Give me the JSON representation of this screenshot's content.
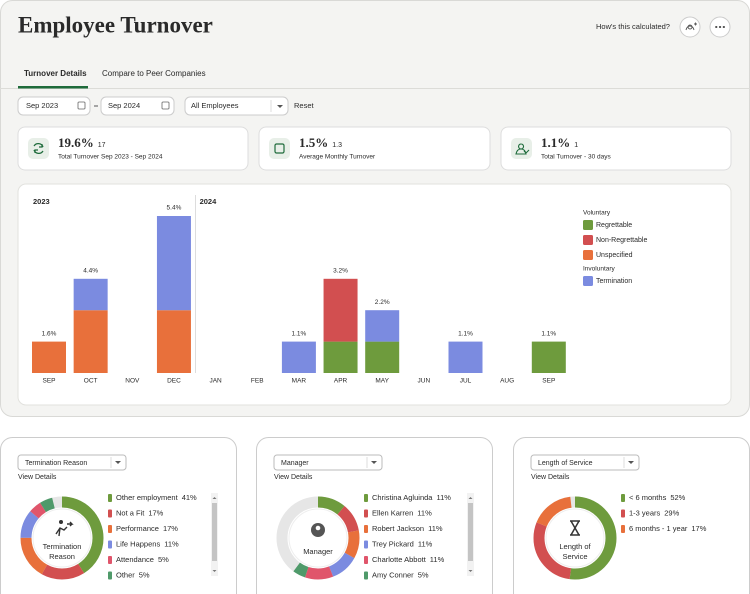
{
  "header": {
    "title": "Employee Turnover",
    "help_link": "How's this calculated?"
  },
  "tabs": [
    "Turnover Details",
    "Compare to Peer Companies"
  ],
  "filters": {
    "start": "Sep 2023",
    "end": "Sep 2024",
    "group": "All Employees",
    "reset": "Reset"
  },
  "kpis": [
    {
      "value": "19.6%",
      "count": "17",
      "label": "Total Turnover Sep 2023 - Sep 2024"
    },
    {
      "value": "1.5%",
      "count": "1.3",
      "label": "Average Monthly Turnover"
    },
    {
      "value": "1.1%",
      "count": "1",
      "label": "Total Turnover - 30 days"
    }
  ],
  "chart_data": {
    "type": "bar",
    "stacked": true,
    "year_labels": [
      {
        "label": "2023",
        "index": 0
      },
      {
        "label": "2024",
        "index": 4
      }
    ],
    "categories": [
      "SEP",
      "OCT",
      "NOV",
      "DEC",
      "JAN",
      "FEB",
      "MAR",
      "APR",
      "MAY",
      "JUN",
      "JUL",
      "AUG",
      "SEP"
    ],
    "total_labels": [
      "1.6%",
      "4.4%",
      null,
      "5.4%",
      null,
      null,
      "1.1%",
      "3.2%",
      "2.2%",
      null,
      "1.1%",
      null,
      "1.1%"
    ],
    "legend_groups": [
      "Voluntary",
      "Involuntary"
    ],
    "series": [
      {
        "name": "Regrettable",
        "group": "Voluntary",
        "color": "#6e9b3d",
        "values": [
          0,
          0,
          0,
          0,
          0,
          0,
          0,
          1,
          1,
          0,
          0,
          0,
          1
        ]
      },
      {
        "name": "Non-Regrettable",
        "group": "Voluntary",
        "color": "#d24f50",
        "values": [
          0,
          0,
          0,
          0,
          0,
          0,
          0,
          2,
          0,
          0,
          0,
          0,
          0
        ]
      },
      {
        "name": "Unspecified",
        "group": "Voluntary",
        "color": "#e8703b",
        "values": [
          1,
          2,
          0,
          2,
          0,
          0,
          0,
          0,
          0,
          0,
          0,
          0,
          0
        ]
      },
      {
        "name": "Termination",
        "group": "Involuntary",
        "color": "#7b8be0",
        "values": [
          0,
          1,
          0,
          3,
          0,
          0,
          1,
          0,
          1,
          0,
          1,
          0,
          0
        ]
      }
    ]
  },
  "breakdowns": [
    {
      "selector": "Termination Reason",
      "link": "View Details",
      "center_label": [
        "Termination",
        "Reason"
      ],
      "scroll": true,
      "items": [
        {
          "name": "Other employment",
          "value": 41,
          "label": "41%",
          "color": "#6e9b3d"
        },
        {
          "name": "Not a Fit",
          "value": 17,
          "label": "17%",
          "color": "#d24f50"
        },
        {
          "name": "Performance",
          "value": 17,
          "label": "17%",
          "color": "#e8703b"
        },
        {
          "name": "Life Happens",
          "value": 11,
          "label": "11%",
          "color": "#7b8be0"
        },
        {
          "name": "Attendance",
          "value": 5,
          "label": "5%",
          "color": "#e0556b"
        },
        {
          "name": "Other",
          "value": 5,
          "label": "5%",
          "color": "#4f9a6a"
        }
      ]
    },
    {
      "selector": "Manager",
      "link": "View Details",
      "center_label": [
        "Manager"
      ],
      "scroll": true,
      "items": [
        {
          "name": "Christina Agluinda",
          "value": 11,
          "label": "11%",
          "color": "#6e9b3d"
        },
        {
          "name": "Ellen Karren",
          "value": 11,
          "label": "11%",
          "color": "#d24f50"
        },
        {
          "name": "Robert Jackson",
          "value": 11,
          "label": "11%",
          "color": "#e8703b"
        },
        {
          "name": "Trey Pickard",
          "value": 11,
          "label": "11%",
          "color": "#7b8be0"
        },
        {
          "name": "Charlotte Abbott",
          "value": 11,
          "label": "11%",
          "color": "#e0556b"
        },
        {
          "name": "Amy Conner",
          "value": 5,
          "label": "5%",
          "color": "#4f9a6a"
        }
      ]
    },
    {
      "selector": "Length of Service",
      "link": "View Details",
      "center_label": [
        "Length of",
        "Service"
      ],
      "scroll": false,
      "items": [
        {
          "name": "< 6 months",
          "value": 52,
          "label": "52%",
          "color": "#6e9b3d"
        },
        {
          "name": "1-3 years",
          "value": 29,
          "label": "29%",
          "color": "#d24f50"
        },
        {
          "name": "6 months - 1 year",
          "value": 17,
          "label": "17%",
          "color": "#e8703b"
        }
      ]
    }
  ]
}
